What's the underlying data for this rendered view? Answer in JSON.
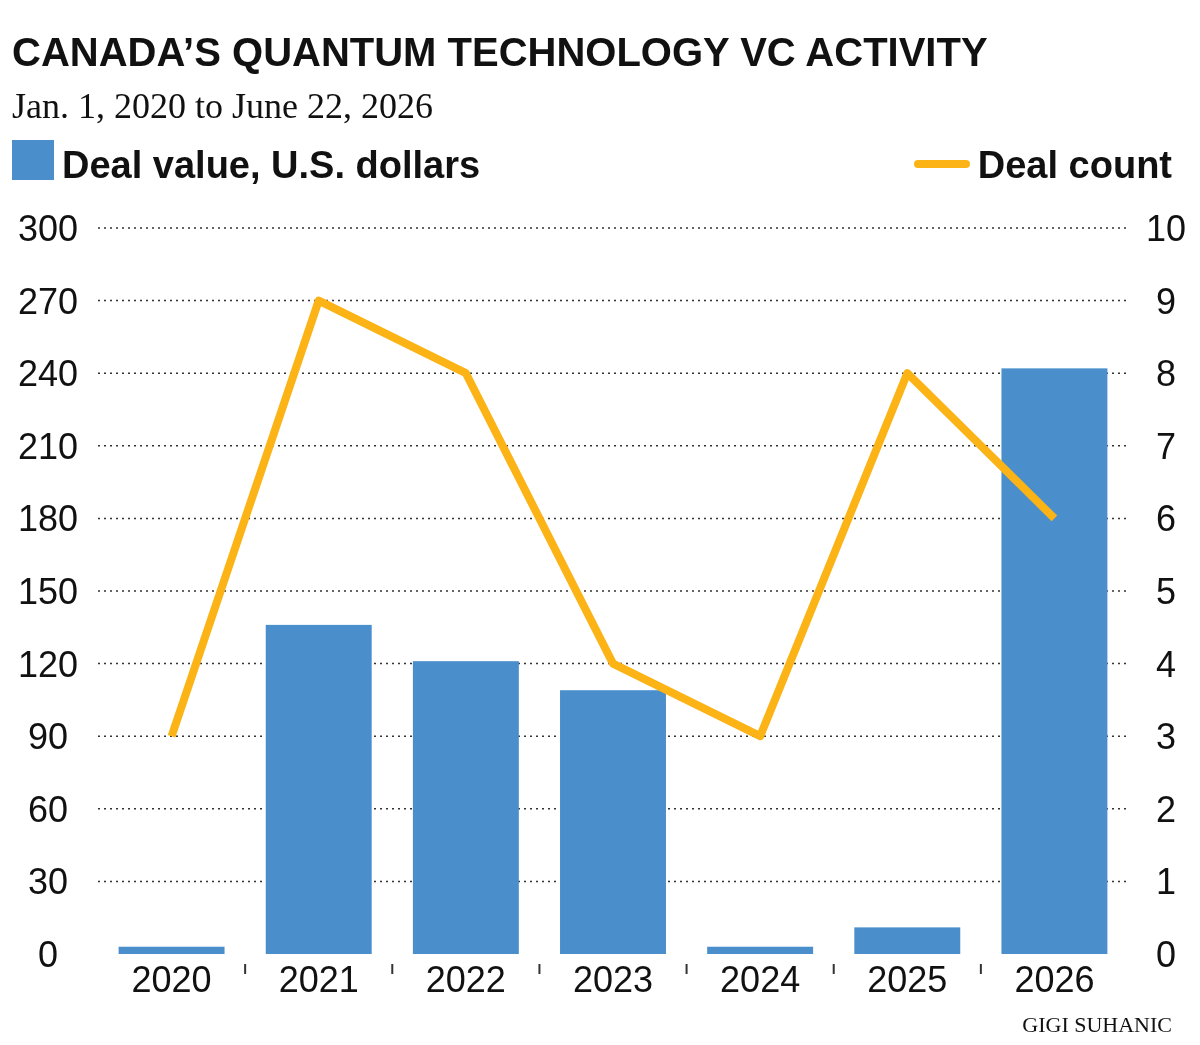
{
  "chart_data": {
    "type": "bar",
    "title": "CANADA’S QUANTUM TECHNOLOGY VC ACTIVITY",
    "subtitle": "Jan. 1, 2020 to June 22, 2026",
    "categories": [
      "2020",
      "2021",
      "2022",
      "2023",
      "2024",
      "2025",
      "2026"
    ],
    "series": [
      {
        "name": "Deal value, U.S. dollars",
        "color": "#4a8fcb",
        "values": [
          3,
          136,
          121,
          109,
          3,
          11,
          242
        ]
      },
      {
        "name": "Deal count",
        "type": "line",
        "axis": "y2",
        "color": "#fbb316",
        "values": [
          3,
          9,
          8,
          4,
          3,
          8,
          6
        ]
      }
    ],
    "ylim": [
      0,
      300
    ],
    "yticks": [
      0,
      30,
      60,
      90,
      120,
      150,
      180,
      210,
      240,
      270,
      300
    ],
    "y2lim": [
      0,
      10
    ],
    "y2ticks": [
      0,
      1,
      2,
      3,
      4,
      5,
      6,
      7,
      8,
      9,
      10
    ],
    "grid": "y",
    "legend": "top",
    "marker": "none",
    "line_style": "solid",
    "annotations": [
      "GIGI SUHANIC"
    ]
  }
}
